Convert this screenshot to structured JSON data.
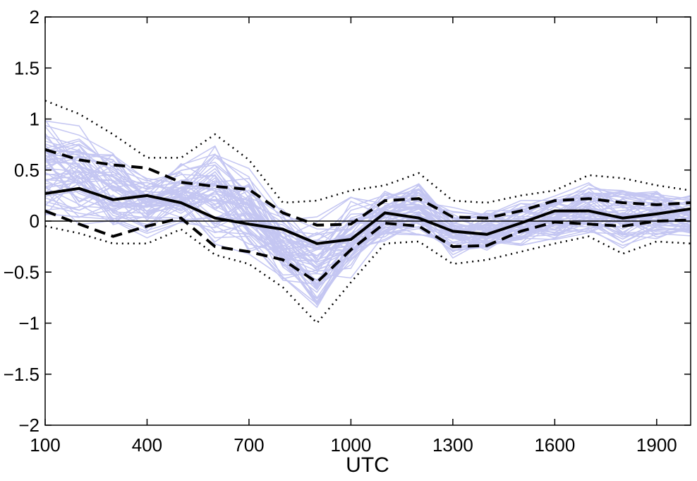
{
  "chart_data": {
    "type": "line",
    "title": "",
    "xlabel": "UTC",
    "ylabel": "",
    "xlim": [
      100,
      2000
    ],
    "ylim": [
      -2,
      2
    ],
    "xticks": [
      100,
      400,
      700,
      1000,
      1300,
      1600,
      1900
    ],
    "yticks": [
      -2,
      -1.5,
      -1,
      -0.5,
      0,
      0.5,
      1,
      1.5,
      2
    ],
    "x": [
      100,
      200,
      300,
      400,
      500,
      600,
      700,
      800,
      900,
      1000,
      1100,
      1200,
      1300,
      1400,
      1500,
      1600,
      1700,
      1800,
      1900,
      2000
    ],
    "grid": false,
    "reference_line_y": 0,
    "colors": {
      "ensemble": "#c4c6f2",
      "summary": "#000000"
    },
    "series": [
      {
        "role": "mean",
        "style": "solid",
        "values": [
          0.27,
          0.32,
          0.21,
          0.25,
          0.18,
          0.03,
          -0.03,
          -0.08,
          -0.22,
          -0.18,
          0.08,
          0.03,
          -0.1,
          -0.13,
          -0.02,
          0.1,
          0.1,
          0.03,
          0.07,
          0.12
        ]
      },
      {
        "role": "upper-dashed",
        "style": "dashed",
        "values": [
          0.7,
          0.6,
          0.55,
          0.52,
          0.38,
          0.34,
          0.31,
          0.08,
          -0.04,
          -0.03,
          0.2,
          0.22,
          0.04,
          0.03,
          0.1,
          0.2,
          0.22,
          0.18,
          0.16,
          0.18
        ]
      },
      {
        "role": "lower-dashed",
        "style": "dashed",
        "values": [
          0.1,
          -0.03,
          -0.15,
          -0.05,
          0.03,
          -0.25,
          -0.3,
          -0.38,
          -0.6,
          -0.28,
          -0.02,
          -0.05,
          -0.25,
          -0.24,
          -0.1,
          -0.01,
          -0.03,
          -0.05,
          0.0,
          0.01
        ]
      },
      {
        "role": "upper-dotted",
        "style": "dotted",
        "values": [
          1.18,
          1.05,
          0.85,
          0.62,
          0.62,
          0.85,
          0.6,
          0.18,
          0.2,
          0.3,
          0.35,
          0.47,
          0.2,
          0.18,
          0.25,
          0.3,
          0.45,
          0.42,
          0.35,
          0.3
        ]
      },
      {
        "role": "lower-dotted",
        "style": "dotted",
        "values": [
          -0.05,
          -0.12,
          -0.22,
          -0.22,
          -0.08,
          -0.33,
          -0.42,
          -0.65,
          -1.0,
          -0.6,
          -0.22,
          -0.2,
          -0.42,
          -0.38,
          -0.3,
          -0.22,
          -0.15,
          -0.32,
          -0.2,
          -0.22
        ]
      }
    ],
    "ensemble_count": 60
  }
}
